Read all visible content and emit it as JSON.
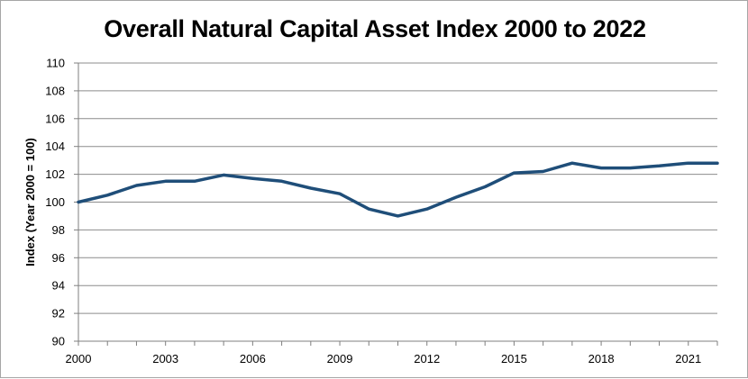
{
  "chart_data": {
    "type": "line",
    "title": "Overall Natural Capital Asset Index 2000 to 2022",
    "xlabel": "",
    "ylabel": "Index (Year 2000 = 100)",
    "xlim": [
      2000,
      2022
    ],
    "ylim": [
      90,
      110
    ],
    "x_ticks": [
      2000,
      2003,
      2006,
      2009,
      2012,
      2015,
      2018,
      2021
    ],
    "y_ticks": [
      90,
      92,
      94,
      96,
      98,
      100,
      102,
      104,
      106,
      108,
      110
    ],
    "grid": true,
    "legend": "none",
    "series": [
      {
        "color": "#1f4e79",
        "x": [
          2000,
          2001,
          2002,
          2003,
          2004,
          2005,
          2006,
          2007,
          2008,
          2009,
          2010,
          2011,
          2012,
          2013,
          2014,
          2015,
          2016,
          2017,
          2018,
          2019,
          2020,
          2021,
          2022
        ],
        "y": [
          100.0,
          100.5,
          101.2,
          101.5,
          101.5,
          101.95,
          101.7,
          101.5,
          101.0,
          100.6,
          99.5,
          99.0,
          99.5,
          100.35,
          101.1,
          102.1,
          102.2,
          102.8,
          102.45,
          102.45,
          102.6,
          102.8,
          102.8
        ]
      }
    ]
  }
}
